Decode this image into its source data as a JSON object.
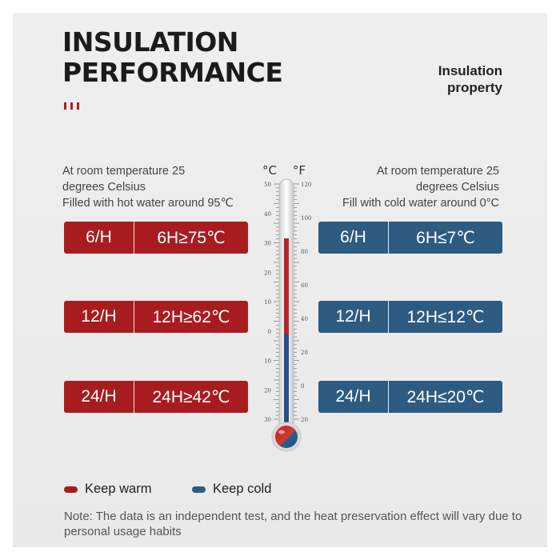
{
  "title": {
    "line1": "INSULATION",
    "line2": "PERFORMANCE"
  },
  "property": {
    "line1": "Insulation",
    "line2": "property"
  },
  "left_desc": {
    "line1": "At room temperature 25",
    "line2": "degrees Celsius",
    "line3": "Filled with hot water around 95℃"
  },
  "right_desc": {
    "line1": "At room temperature 25",
    "line2": "degrees Celsius",
    "line3": "Fill with cold water around 0°C"
  },
  "warm_rows": [
    {
      "hours": "6/H",
      "value": "6H≥75℃"
    },
    {
      "hours": "12/H",
      "value": "12H≥62℃"
    },
    {
      "hours": "24/H",
      "value": "24H≥42℃"
    }
  ],
  "cold_rows": [
    {
      "hours": "6/H",
      "value": "6H≤7℃"
    },
    {
      "hours": "12/H",
      "value": "12H≤12℃"
    },
    {
      "hours": "24/H",
      "value": "24H≤20℃"
    }
  ],
  "thermometer": {
    "celsius_label": "°C",
    "fahrenheit_label": "°F",
    "celsius_ticks": [
      "50",
      "40",
      "30",
      "20",
      "10",
      "0",
      "10",
      "20",
      "30"
    ],
    "fahrenheit_ticks": [
      "120",
      "100",
      "80",
      "60",
      "40",
      "20",
      "0",
      "20"
    ]
  },
  "legend": {
    "warm": "Keep warm",
    "cold": "Keep cold"
  },
  "note": "Note: The data is an independent test, and the heat preservation effect will vary due to personal usage habits",
  "colors": {
    "warm": "#a81c20",
    "cold": "#2d5b82"
  }
}
